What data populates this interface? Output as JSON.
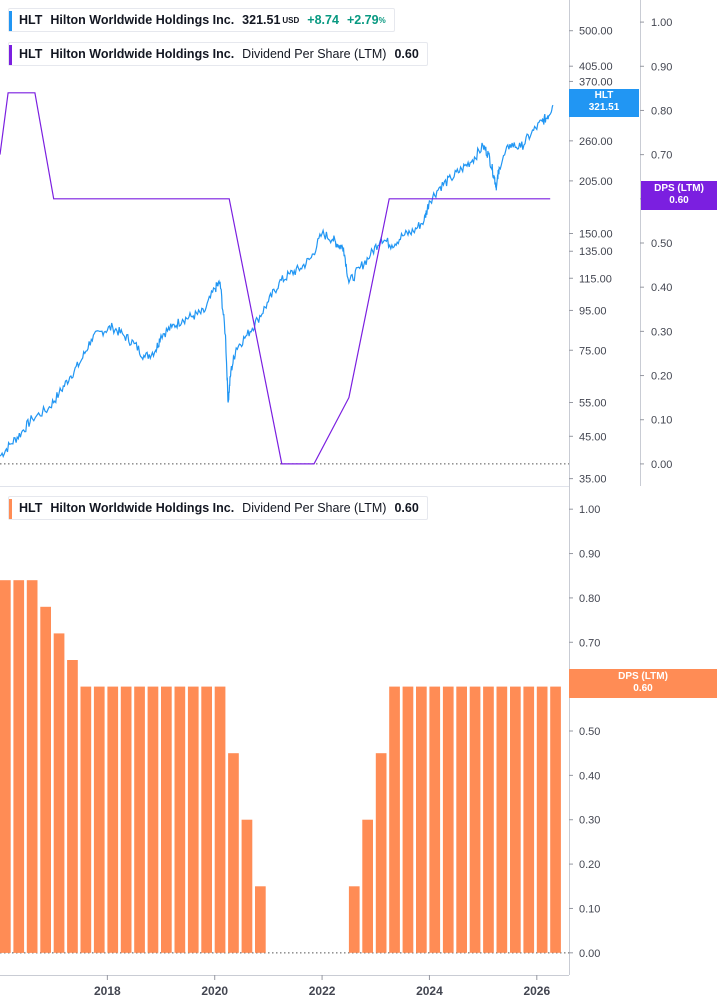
{
  "legends": {
    "price": {
      "ticker": "HLT",
      "company": "Hilton Worldwide Holdings Inc.",
      "price": "321.51",
      "currency": "USD",
      "change": "+8.74",
      "change_pct": "+2.79",
      "pct_sign": "%",
      "color": "#2196f3"
    },
    "dps_top": {
      "ticker": "HLT",
      "company": "Hilton Worldwide Holdings Inc.",
      "metric": "Dividend Per Share (LTM)",
      "value": "0.60",
      "color": "#7b1fe0"
    },
    "dps_bottom": {
      "ticker": "HLT",
      "company": "Hilton Worldwide Holdings Inc.",
      "metric": "Dividend Per Share (LTM)",
      "value": "0.60",
      "color": "#ff8c55"
    }
  },
  "tags": {
    "price": {
      "line1": "HLT",
      "line2": "321.51",
      "color": "#2196f3"
    },
    "dps_top": {
      "line1": "DPS (LTM)",
      "line2": "0.60",
      "color": "#7b1fe0"
    },
    "dps_bottom": {
      "line1": "DPS (LTM)",
      "line2": "0.60",
      "color": "#ff8c55"
    }
  },
  "chart_data": [
    {
      "type": "line",
      "scale": "log",
      "x_axis": {
        "range": [
          2016.0,
          2026.6
        ],
        "ticks": [
          "2018",
          "2020",
          "2022",
          "2024",
          "2026"
        ]
      },
      "y_axis_price": {
        "range": [
          33.5,
          600
        ],
        "ticks": [
          "500.00",
          "405.00",
          "370.00",
          "260.00",
          "205.00",
          "150.00",
          "135.00",
          "115.00",
          "95.00",
          "75.00",
          "55.00",
          "45.00",
          "35.00"
        ]
      },
      "y_axis_dps": {
        "range": [
          -0.05,
          1.05
        ],
        "ticks": [
          "1.00",
          "0.90",
          "0.80",
          "0.70",
          "0.60",
          "0.50",
          "0.40",
          "0.30",
          "0.20",
          "0.10",
          "0.00"
        ]
      },
      "series": [
        {
          "name": "HLT",
          "color": "#2196f3",
          "x": [
            2016.0,
            2016.2,
            2016.4,
            2016.6,
            2016.9,
            2017.1,
            2017.3,
            2017.5,
            2017.7,
            2017.9,
            2018.1,
            2018.3,
            2018.5,
            2018.7,
            2018.9,
            2019.0,
            2019.2,
            2019.4,
            2019.6,
            2019.8,
            2020.0,
            2020.1,
            2020.2,
            2020.25,
            2020.3,
            2020.4,
            2020.6,
            2020.8,
            2021.0,
            2021.2,
            2021.4,
            2021.6,
            2021.8,
            2022.0,
            2022.2,
            2022.3,
            2022.4,
            2022.5,
            2022.7,
            2022.9,
            2023.1,
            2023.3,
            2023.5,
            2023.7,
            2023.9,
            2024.0,
            2024.2,
            2024.4,
            2024.6,
            2024.8,
            2025.0,
            2025.1,
            2025.2,
            2025.25,
            2025.3,
            2025.5,
            2025.7,
            2025.9,
            2026.1,
            2026.2,
            2026.3
          ],
          "values": [
            40,
            43,
            46,
            50,
            53,
            58,
            64,
            70,
            80,
            84,
            86,
            82,
            78,
            72,
            75,
            82,
            86,
            90,
            92,
            94,
            108,
            112,
            82,
            55,
            66,
            76,
            82,
            90,
            100,
            112,
            118,
            122,
            130,
            150,
            145,
            140,
            138,
            112,
            122,
            132,
            146,
            140,
            148,
            152,
            162,
            182,
            198,
            208,
            220,
            232,
            252,
            240,
            212,
            198,
            222,
            255,
            250,
            272,
            292,
            300,
            321.51
          ]
        },
        {
          "name": "Dividend Per Share (LTM)",
          "color": "#7b1fe0",
          "x": [
            2016.0,
            2016.15,
            2016.65,
            2017.0,
            2017.9,
            2020.27,
            2021.25,
            2021.85,
            2022.5,
            2023.25,
            2026.25
          ],
          "values": [
            0.7,
            0.84,
            0.84,
            0.6,
            0.6,
            0.6,
            0.0,
            0.0,
            0.15,
            0.6,
            0.6
          ]
        }
      ]
    },
    {
      "type": "bar",
      "x_axis": {
        "range": [
          2016.0,
          2026.6
        ],
        "ticks": [
          "2018",
          "2020",
          "2022",
          "2024",
          "2026"
        ]
      },
      "y_axis": {
        "range": [
          -0.05,
          1.05
        ],
        "ticks": [
          "1.00",
          "0.90",
          "0.80",
          "0.70",
          "0.60",
          "0.50",
          "0.40",
          "0.30",
          "0.20",
          "0.10",
          "0.00"
        ]
      },
      "series": [
        {
          "name": "Dividend Per Share (LTM)",
          "color": "#ff8c55",
          "x": [
            2016.1,
            2016.35,
            2016.6,
            2016.85,
            2017.1,
            2017.35,
            2017.6,
            2017.85,
            2018.1,
            2018.35,
            2018.6,
            2018.85,
            2019.1,
            2019.35,
            2019.6,
            2019.85,
            2020.1,
            2020.35,
            2020.6,
            2020.85,
            2021.1,
            2021.35,
            2021.6,
            2021.85,
            2022.1,
            2022.35,
            2022.6,
            2022.85,
            2023.1,
            2023.35,
            2023.6,
            2023.85,
            2024.1,
            2024.35,
            2024.6,
            2024.85,
            2025.1,
            2025.35,
            2025.6,
            2025.85,
            2026.1,
            2026.35
          ],
          "values": [
            0.84,
            0.84,
            0.84,
            0.78,
            0.72,
            0.66,
            0.6,
            0.6,
            0.6,
            0.6,
            0.6,
            0.6,
            0.6,
            0.6,
            0.6,
            0.6,
            0.6,
            0.45,
            0.3,
            0.15,
            0,
            0,
            0,
            0,
            0,
            0,
            0.15,
            0.3,
            0.45,
            0.6,
            0.6,
            0.6,
            0.6,
            0.6,
            0.6,
            0.6,
            0.6,
            0.6,
            0.6,
            0.6,
            0.6,
            0.6
          ]
        }
      ]
    }
  ]
}
